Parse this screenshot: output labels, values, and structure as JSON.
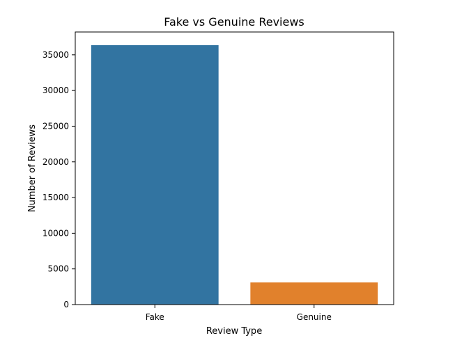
{
  "chart_data": {
    "type": "bar",
    "title": "Fake vs Genuine Reviews",
    "xlabel": "Review Type",
    "ylabel": "Number of Reviews",
    "categories": [
      "Fake",
      "Genuine"
    ],
    "values": [
      36350,
      3100
    ],
    "colors": [
      "#3274a1",
      "#e1812c"
    ],
    "ylim": [
      0,
      38200
    ],
    "yticks": [
      0,
      5000,
      10000,
      15000,
      20000,
      25000,
      30000,
      35000
    ],
    "grid": false,
    "legend": "none"
  }
}
